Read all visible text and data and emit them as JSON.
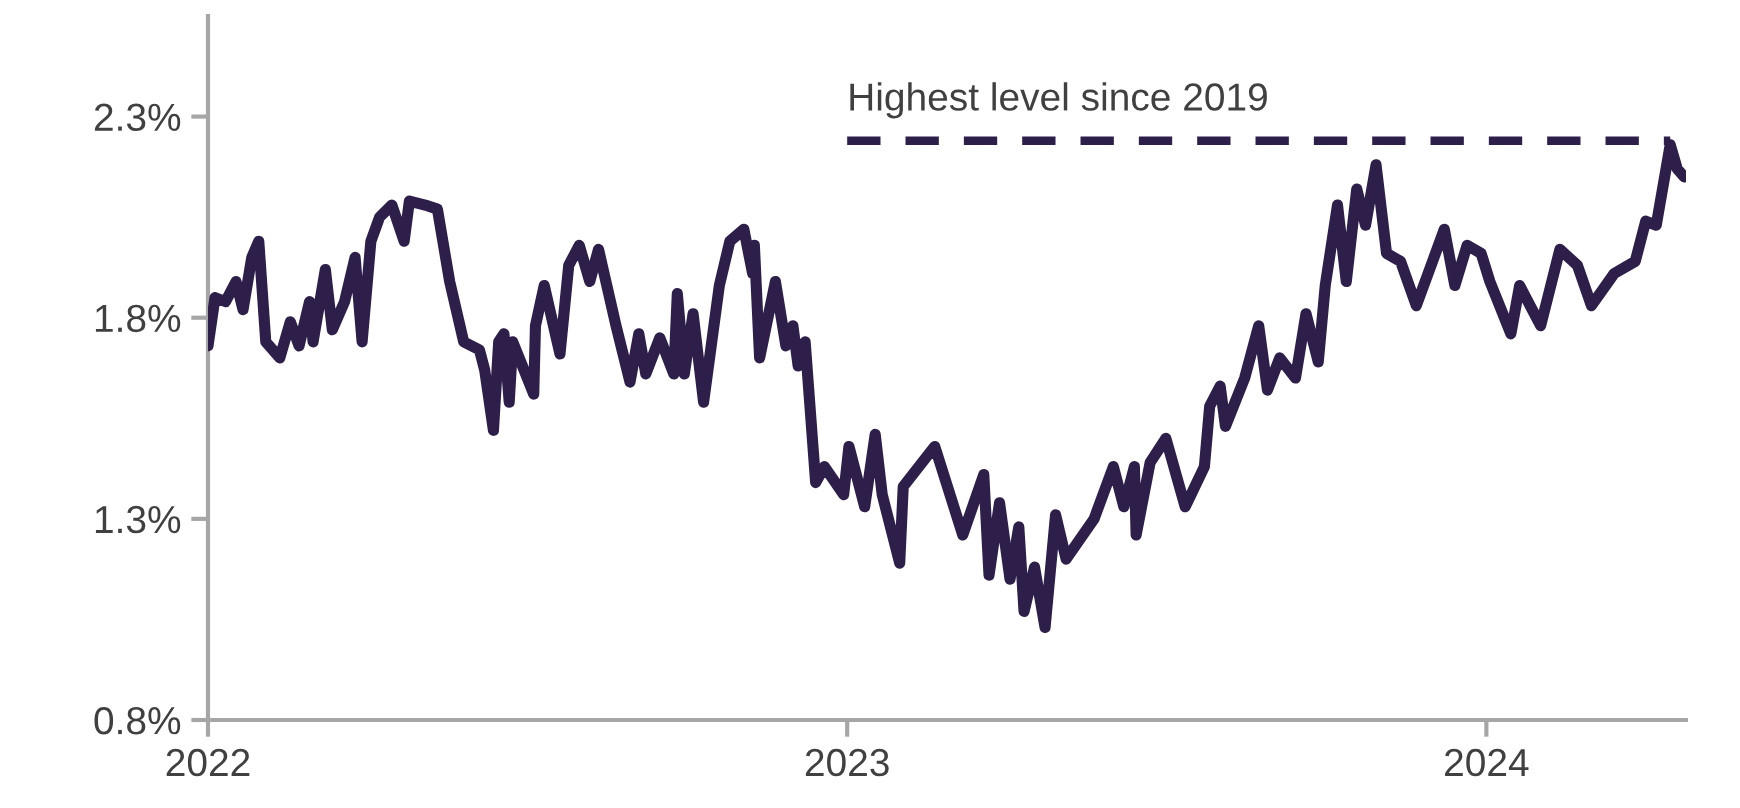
{
  "chart_data": {
    "type": "line",
    "series": [
      {
        "color": "#2e1f4a",
        "x": [
          "2022-01-01",
          "2022-01-05",
          "2022-01-11",
          "2022-01-17",
          "2022-01-21",
          "2022-01-26",
          "2022-01-30",
          "2022-02-03",
          "2022-02-11",
          "2022-02-17",
          "2022-02-22",
          "2022-02-28",
          "2022-03-02",
          "2022-03-09",
          "2022-03-13",
          "2022-03-20",
          "2022-03-26",
          "2022-03-30",
          "2022-04-04",
          "2022-04-09",
          "2022-04-16",
          "2022-04-23",
          "2022-04-26",
          "2022-05-05",
          "2022-05-12",
          "2022-05-19",
          "2022-05-27",
          "2022-06-05",
          "2022-06-08",
          "2022-06-13",
          "2022-06-16",
          "2022-06-19",
          "2022-06-22",
          "2022-06-24",
          "2022-07-06",
          "2022-07-07",
          "2022-07-12",
          "2022-07-21",
          "2022-07-26",
          "2022-08-01",
          "2022-08-07",
          "2022-08-12",
          "2022-08-22",
          "2022-08-30",
          "2022-09-04",
          "2022-09-08",
          "2022-09-16",
          "2022-09-24",
          "2022-09-26",
          "2022-09-30",
          "2022-10-05",
          "2022-10-11",
          "2022-10-20",
          "2022-10-26",
          "2022-11-03",
          "2022-11-08",
          "2022-11-09",
          "2022-11-12",
          "2022-11-21",
          "2022-11-27",
          "2022-12-01",
          "2022-12-04",
          "2022-12-08",
          "2022-12-14",
          "2022-12-19",
          "2022-12-30",
          "2023-01-02",
          "2023-01-11",
          "2023-01-17",
          "2023-01-21",
          "2023-01-31",
          "2023-02-02",
          "2023-02-20",
          "2023-03-08",
          "2023-03-20",
          "2023-03-23",
          "2023-03-29",
          "2023-04-04",
          "2023-04-09",
          "2023-04-12",
          "2023-04-18",
          "2023-04-24",
          "2023-04-30",
          "2023-05-06",
          "2023-05-22",
          "2023-06-02",
          "2023-06-08",
          "2023-06-14",
          "2023-06-15",
          "2023-06-23",
          "2023-07-02",
          "2023-07-13",
          "2023-07-24",
          "2023-07-27",
          "2023-08-02",
          "2023-08-05",
          "2023-08-16",
          "2023-08-24",
          "2023-08-29",
          "2023-09-05",
          "2023-09-14",
          "2023-09-20",
          "2023-09-27",
          "2023-10-01",
          "2023-10-08",
          "2023-10-13",
          "2023-10-19",
          "2023-10-24",
          "2023-10-30",
          "2023-11-05",
          "2023-11-13",
          "2023-11-22",
          "2023-12-08",
          "2023-12-14",
          "2023-12-21",
          "2023-12-29",
          "2024-01-03",
          "2024-01-15",
          "2024-01-20",
          "2024-02-01",
          "2024-02-12",
          "2024-02-22",
          "2024-03-01",
          "2024-03-14",
          "2024-03-26",
          "2024-04-01",
          "2024-04-07",
          "2024-04-15",
          "2024-04-19",
          "2024-04-23"
        ],
        "values": [
          1.73,
          1.85,
          1.84,
          1.89,
          1.82,
          1.95,
          1.99,
          1.74,
          1.7,
          1.79,
          1.73,
          1.84,
          1.74,
          1.92,
          1.77,
          1.84,
          1.95,
          1.74,
          1.99,
          2.05,
          2.08,
          1.99,
          2.09,
          2.08,
          2.07,
          1.89,
          1.74,
          1.72,
          1.67,
          1.52,
          1.74,
          1.76,
          1.59,
          1.74,
          1.61,
          1.78,
          1.88,
          1.71,
          1.93,
          1.98,
          1.89,
          1.97,
          1.78,
          1.64,
          1.76,
          1.66,
          1.75,
          1.66,
          1.86,
          1.66,
          1.81,
          1.59,
          1.88,
          1.99,
          2.02,
          1.91,
          1.98,
          1.7,
          1.89,
          1.73,
          1.78,
          1.68,
          1.74,
          1.39,
          1.43,
          1.36,
          1.48,
          1.33,
          1.51,
          1.36,
          1.19,
          1.38,
          1.48,
          1.26,
          1.41,
          1.16,
          1.34,
          1.15,
          1.28,
          1.07,
          1.18,
          1.03,
          1.31,
          1.2,
          1.3,
          1.43,
          1.33,
          1.43,
          1.26,
          1.44,
          1.5,
          1.33,
          1.43,
          1.58,
          1.63,
          1.53,
          1.65,
          1.78,
          1.62,
          1.7,
          1.65,
          1.81,
          1.69,
          1.88,
          2.08,
          1.89,
          2.12,
          2.03,
          2.18,
          1.96,
          1.94,
          1.83,
          2.02,
          1.88,
          1.98,
          1.96,
          1.89,
          1.76,
          1.88,
          1.78,
          1.97,
          1.93,
          1.83,
          1.91,
          1.94,
          2.04,
          2.03,
          2.23,
          2.17,
          2.15
        ]
      },
      {
        "color": "#2e1f4a",
        "line_style": "dashed",
        "x": [
          "2023-01-01",
          "2024-04-15"
        ],
        "values": [
          2.24,
          2.24
        ]
      }
    ],
    "annotations": [
      {
        "text": "Highest level since 2019",
        "x": "2023-01-01",
        "y": 2.24
      }
    ],
    "xlim": [
      "2022-01-01",
      "2024-04-24"
    ],
    "xticks": [
      {
        "value": "2022-01-01",
        "label": "2022"
      },
      {
        "value": "2023-01-01",
        "label": "2023"
      },
      {
        "value": "2024-01-01",
        "label": "2024"
      }
    ],
    "ylim": [
      0.8,
      2.55
    ],
    "yticks": [
      {
        "value": 0.8,
        "label": "0.8%"
      },
      {
        "value": 1.3,
        "label": "1.3%"
      },
      {
        "value": 1.8,
        "label": "1.8%"
      },
      {
        "value": 2.3,
        "label": "2.3%"
      }
    ],
    "grid": false,
    "legend": false
  }
}
